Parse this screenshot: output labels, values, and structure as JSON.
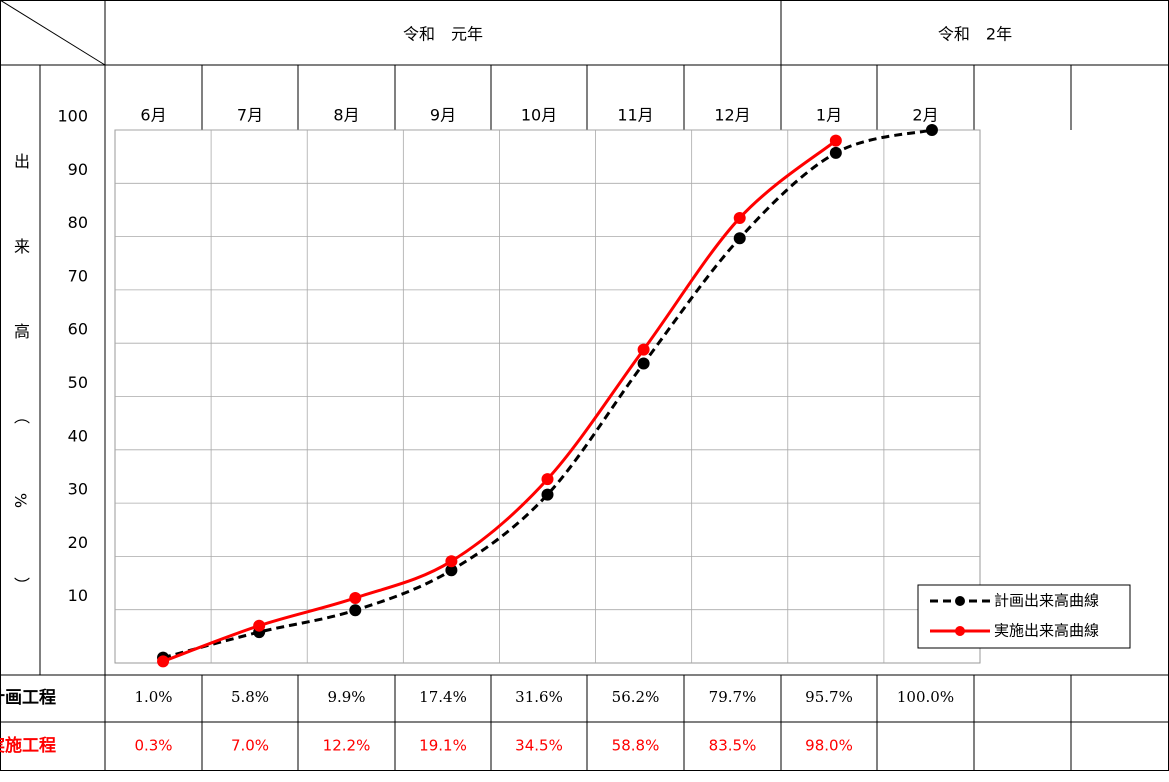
{
  "chart_data": {
    "type": "line",
    "era_labels": [
      "令和　元年",
      "令和　2年"
    ],
    "categories": [
      "6月",
      "7月",
      "8月",
      "9月",
      "10月",
      "11月",
      "12月",
      "1月",
      "2月"
    ],
    "y_label": "出来高（%）",
    "ylim": [
      0,
      100
    ],
    "yticks": [
      10,
      20,
      30,
      40,
      50,
      60,
      70,
      80,
      90,
      100
    ],
    "grid": true,
    "legend": "lower right",
    "row_labels": [
      "計画工程",
      "実施工程"
    ],
    "series": [
      {
        "name": "計画出来高曲線",
        "color": "#000000",
        "dashed": true,
        "values": [
          1.0,
          5.8,
          9.9,
          17.4,
          31.6,
          56.2,
          79.7,
          95.7,
          100.0
        ],
        "value_labels": [
          "1.0%",
          "5.8%",
          "9.9%",
          "17.4%",
          "31.6%",
          "56.2%",
          "79.7%",
          "95.7%",
          "100.0%"
        ]
      },
      {
        "name": "実施出来高曲線",
        "color": "#ff0000",
        "dashed": false,
        "values": [
          0.3,
          7.0,
          12.2,
          19.1,
          34.5,
          58.8,
          83.5,
          98.0,
          null
        ],
        "value_labels": [
          "0.3%",
          "7.0%",
          "12.2%",
          "19.1%",
          "34.5%",
          "58.8%",
          "83.5%",
          "98.0%",
          null
        ]
      }
    ]
  }
}
